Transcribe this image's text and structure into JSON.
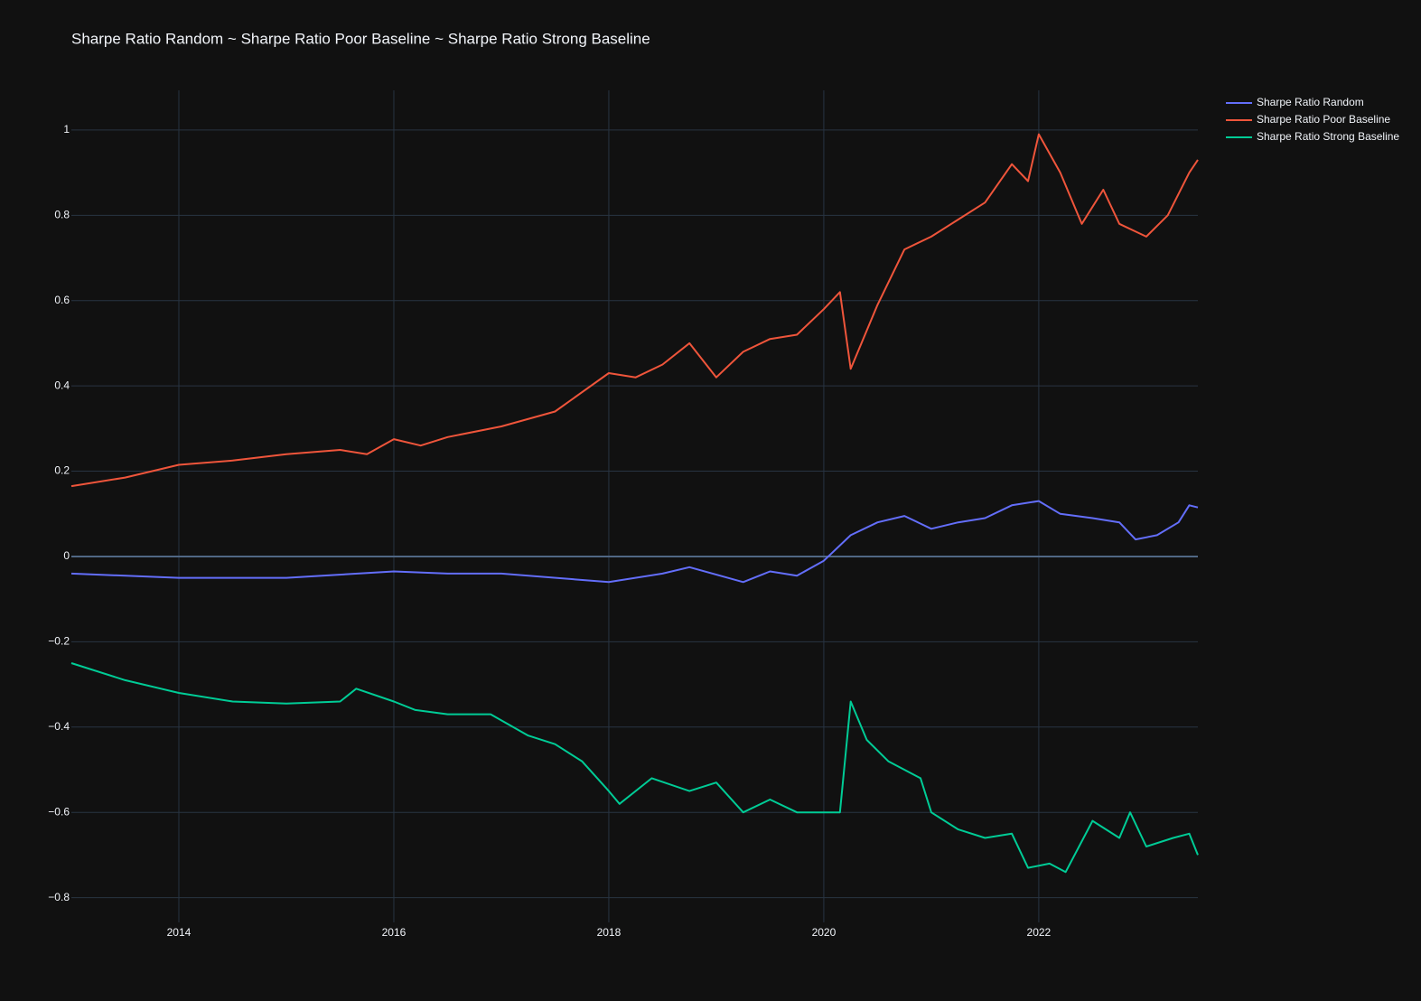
{
  "chart_data": {
    "type": "line",
    "title": "Sharpe Ratio Random ~ Sharpe Ratio Poor Baseline ~ Sharpe Ratio Strong Baseline",
    "xlim": [
      2013,
      2023.48
    ],
    "xticks": [
      2014,
      2016,
      2018,
      2020,
      2022
    ],
    "ylim": [
      -0.858,
      1.093
    ],
    "yticks": [
      {
        "value": -0.8,
        "label": "−0.8"
      },
      {
        "value": -0.6,
        "label": "−0.6"
      },
      {
        "value": -0.4,
        "label": "−0.4"
      },
      {
        "value": -0.2,
        "label": "−0.2"
      },
      0,
      0.2,
      0.4,
      0.6,
      0.8,
      1
    ],
    "grid": true,
    "legend": "outside-top-right",
    "series": [
      {
        "name": "Sharpe Ratio Random",
        "color": "#636efa",
        "x": [
          2013,
          2014,
          2015,
          2016,
          2016.5,
          2017,
          2018,
          2018.5,
          2018.75,
          2019.25,
          2019.5,
          2019.75,
          2020,
          2020.25,
          2020.5,
          2020.75,
          2021,
          2021.25,
          2021.5,
          2021.75,
          2022,
          2022.2,
          2022.5,
          2022.75,
          2022.9,
          2023.1,
          2023.3,
          2023.4,
          2023.48
        ],
        "values": [
          -0.04,
          -0.05,
          -0.05,
          -0.035,
          -0.04,
          -0.04,
          -0.06,
          -0.04,
          -0.025,
          -0.06,
          -0.035,
          -0.045,
          -0.01,
          0.05,
          0.08,
          0.095,
          0.065,
          0.08,
          0.09,
          0.12,
          0.13,
          0.1,
          0.09,
          0.08,
          0.04,
          0.05,
          0.08,
          0.12,
          0.115
        ]
      },
      {
        "name": "Sharpe Ratio Poor Baseline",
        "color": "#ef553b",
        "x": [
          2013,
          2013.5,
          2014,
          2014.5,
          2015,
          2015.5,
          2015.75,
          2016,
          2016.25,
          2016.5,
          2017,
          2017.5,
          2018,
          2018.25,
          2018.5,
          2018.75,
          2019,
          2019.25,
          2019.5,
          2019.75,
          2020,
          2020.15,
          2020.25,
          2020.5,
          2020.75,
          2021,
          2021.25,
          2021.5,
          2021.75,
          2021.9,
          2022,
          2022.2,
          2022.4,
          2022.6,
          2022.75,
          2023,
          2023.2,
          2023.4,
          2023.48
        ],
        "values": [
          0.165,
          0.185,
          0.215,
          0.225,
          0.24,
          0.25,
          0.24,
          0.275,
          0.26,
          0.28,
          0.305,
          0.34,
          0.43,
          0.42,
          0.45,
          0.5,
          0.42,
          0.48,
          0.51,
          0.52,
          0.58,
          0.62,
          0.44,
          0.59,
          0.72,
          0.75,
          0.79,
          0.83,
          0.92,
          0.88,
          0.99,
          0.9,
          0.78,
          0.86,
          0.78,
          0.75,
          0.8,
          0.9,
          0.93
        ]
      },
      {
        "name": "Sharpe Ratio Strong Baseline",
        "color": "#00cc96",
        "x": [
          2013,
          2013.5,
          2014,
          2014.5,
          2015,
          2015.5,
          2015.65,
          2016,
          2016.2,
          2016.5,
          2016.9,
          2017.25,
          2017.5,
          2017.75,
          2018,
          2018.1,
          2018.4,
          2018.75,
          2019,
          2019.25,
          2019.5,
          2019.75,
          2020,
          2020.15,
          2020.25,
          2020.4,
          2020.6,
          2020.9,
          2021,
          2021.25,
          2021.5,
          2021.75,
          2021.9,
          2022.1,
          2022.25,
          2022.5,
          2022.75,
          2022.85,
          2023,
          2023.25,
          2023.4,
          2023.48
        ],
        "values": [
          -0.25,
          -0.29,
          -0.32,
          -0.34,
          -0.345,
          -0.34,
          -0.31,
          -0.34,
          -0.36,
          -0.37,
          -0.37,
          -0.42,
          -0.44,
          -0.48,
          -0.55,
          -0.58,
          -0.52,
          -0.55,
          -0.53,
          -0.6,
          -0.57,
          -0.6,
          -0.6,
          -0.6,
          -0.34,
          -0.43,
          -0.48,
          -0.52,
          -0.6,
          -0.64,
          -0.66,
          -0.65,
          -0.73,
          -0.72,
          -0.74,
          -0.62,
          -0.66,
          -0.6,
          -0.68,
          -0.66,
          -0.65,
          -0.7
        ]
      }
    ]
  }
}
